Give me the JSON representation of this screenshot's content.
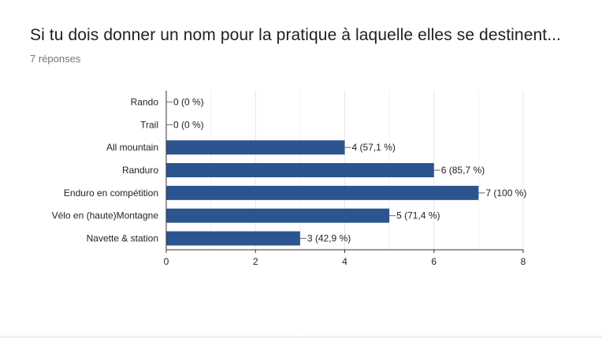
{
  "card": {
    "title": "Si tu dois donner un nom pour la pratique à laquelle elles se destinent...",
    "response_count": "7 réponses"
  },
  "chart_data": {
    "type": "bar",
    "orientation": "horizontal",
    "categories": [
      "Rando",
      "Trail",
      "All mountain",
      "Randuro",
      "Enduro en compétition",
      "Vélo en (haute)Montagne",
      "Navette & station"
    ],
    "values": [
      0,
      0,
      4,
      6,
      7,
      5,
      3
    ],
    "data_labels": [
      "0 (0 %)",
      "0 (0 %)",
      "4 (57,1 %)",
      "6 (85,7 %)",
      "7 (100 %)",
      "5 (71,4 %)",
      "3 (42,9 %)"
    ],
    "xlim": [
      0,
      8
    ],
    "x_ticks": [
      0,
      2,
      4,
      6,
      8
    ],
    "grid": true,
    "bar_color": "#2c5590",
    "grid_color": "#e6e6e6",
    "axis_color": "#333333"
  }
}
